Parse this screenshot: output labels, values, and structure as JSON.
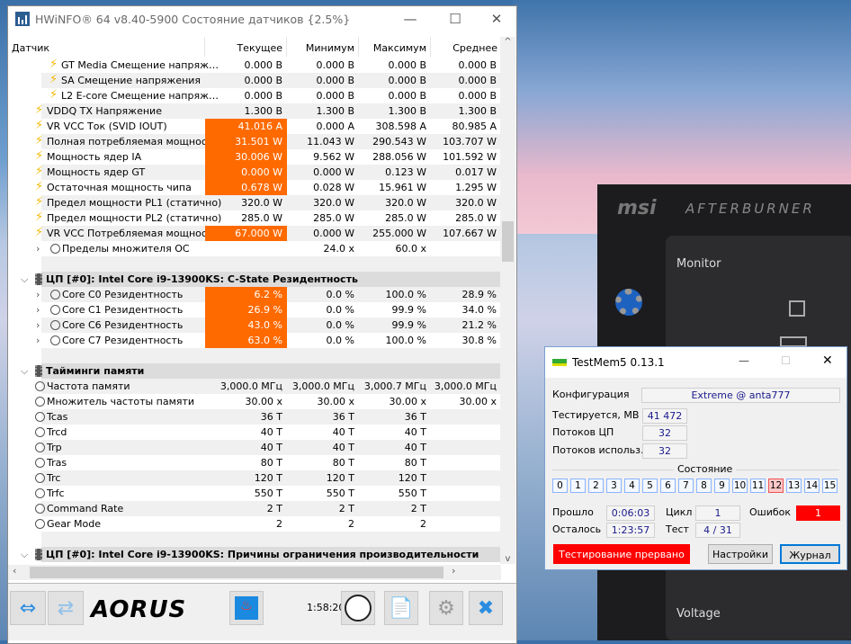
{
  "hwinfo": {
    "title": "HWiNFO® 64 v8.40-5900 Состояние датчиков {2.5%}",
    "columns": [
      "Датчик",
      "Текущее",
      "Минимум",
      "Максимум",
      "Среднее"
    ],
    "rows": [
      {
        "type": "sensor",
        "icon": "bolt-icon",
        "lvl": 3,
        "name": "GT Media Смещение напряж…",
        "v": [
          "0.000 В",
          "0.000 В",
          "0.000 В",
          "0.000 В"
        ]
      },
      {
        "type": "sensor",
        "icon": "bolt-icon",
        "lvl": 3,
        "name": "SA Смещение напряжения",
        "v": [
          "0.000 В",
          "0.000 В",
          "0.000 В",
          "0.000 В"
        ]
      },
      {
        "type": "sensor",
        "icon": "bolt-icon",
        "lvl": 3,
        "name": "L2 E-core Смещение напряж…",
        "v": [
          "0.000 В",
          "0.000 В",
          "0.000 В",
          "0.000 В"
        ]
      },
      {
        "type": "sensor",
        "icon": "bolt-icon",
        "lvl": 2,
        "name": "VDDQ TX Напряжение",
        "v": [
          "1.300 В",
          "1.300 В",
          "1.300 В",
          "1.300 В"
        ]
      },
      {
        "type": "sensor",
        "icon": "bolt-icon",
        "lvl": 2,
        "hi": true,
        "name": "VR VCC Ток (SVID IOUT)",
        "v": [
          "41.016 A",
          "0.000 A",
          "308.598 A",
          "80.985 A"
        ]
      },
      {
        "type": "sensor",
        "icon": "bolt-icon",
        "lvl": 2,
        "hi": true,
        "name": "Полная потребляемая мощност…",
        "v": [
          "31.501 W",
          "11.043 W",
          "290.543 W",
          "103.707 W"
        ]
      },
      {
        "type": "sensor",
        "icon": "bolt-icon",
        "lvl": 2,
        "hi": true,
        "name": "Мощность ядер IA",
        "v": [
          "30.006 W",
          "9.562 W",
          "288.056 W",
          "101.592 W"
        ]
      },
      {
        "type": "sensor",
        "icon": "bolt-icon",
        "lvl": 2,
        "hi": true,
        "name": "Мощность ядер GT",
        "v": [
          "0.000 W",
          "0.000 W",
          "0.123 W",
          "0.017 W"
        ]
      },
      {
        "type": "sensor",
        "icon": "bolt-icon",
        "lvl": 2,
        "hi": true,
        "name": "Остаточная мощность чипа",
        "v": [
          "0.678 W",
          "0.028 W",
          "15.961 W",
          "1.295 W"
        ]
      },
      {
        "type": "sensor",
        "icon": "bolt-icon",
        "lvl": 2,
        "name": "Предел мощности PL1 (статично)",
        "v": [
          "320.0 W",
          "320.0 W",
          "320.0 W",
          "320.0 W"
        ]
      },
      {
        "type": "sensor",
        "icon": "bolt-icon",
        "lvl": 2,
        "name": "Предел мощности PL2 (статично)",
        "v": [
          "285.0 W",
          "285.0 W",
          "285.0 W",
          "285.0 W"
        ]
      },
      {
        "type": "sensor",
        "icon": "bolt-icon",
        "lvl": 2,
        "hi": true,
        "name": "VR VCC Потребляемая мощност…",
        "v": [
          "67.000 W",
          "0.000 W",
          "255.000 W",
          "107.667 W"
        ]
      },
      {
        "type": "sensor",
        "icon": "clock-icon",
        "lvl": 1,
        "chev": true,
        "name": "Пределы множителя ОС",
        "v": [
          "",
          "24.0 x",
          "60.0 x",
          ""
        ]
      },
      {
        "type": "blank"
      },
      {
        "type": "section",
        "name": "ЦП [#0]: Intel Core i9-13900KS: C-State Резидентность"
      },
      {
        "type": "sensor",
        "icon": "clock-icon",
        "lvl": 1,
        "chev": true,
        "hi": true,
        "name": "Core C0 Резидентность",
        "v": [
          "6.2 %",
          "0.0 %",
          "100.0 %",
          "28.9 %"
        ]
      },
      {
        "type": "sensor",
        "icon": "clock-icon",
        "lvl": 1,
        "chev": true,
        "hi": true,
        "name": "Core C1 Резидентность",
        "v": [
          "26.9 %",
          "0.0 %",
          "99.9 %",
          "34.0 %"
        ]
      },
      {
        "type": "sensor",
        "icon": "clock-icon",
        "lvl": 1,
        "chev": true,
        "hi": true,
        "name": "Core C6 Резидентность",
        "v": [
          "43.0 %",
          "0.0 %",
          "99.9 %",
          "21.2 %"
        ]
      },
      {
        "type": "sensor",
        "icon": "clock-icon",
        "lvl": 1,
        "chev": true,
        "hi": true,
        "name": "Core C7 Резидентность",
        "v": [
          "63.0 %",
          "0.0 %",
          "100.0 %",
          "30.8 %"
        ]
      },
      {
        "type": "blank"
      },
      {
        "type": "section",
        "name": "Тайминги памяти"
      },
      {
        "type": "sensor",
        "icon": "clock-icon",
        "lvl": 0,
        "name": "Частота памяти",
        "v": [
          "3,000.0 МГц",
          "3,000.0 МГц",
          "3,000.7 МГц",
          "3,000.0 МГц"
        ]
      },
      {
        "type": "sensor",
        "icon": "clock-icon",
        "lvl": 0,
        "name": "Множитель частоты памяти",
        "v": [
          "30.00 x",
          "30.00 x",
          "30.00 x",
          "30.00 x"
        ]
      },
      {
        "type": "sensor",
        "icon": "clock-icon",
        "lvl": 0,
        "name": "Tcas",
        "v": [
          "36 T",
          "36 T",
          "36 T",
          ""
        ]
      },
      {
        "type": "sensor",
        "icon": "clock-icon",
        "lvl": 0,
        "name": "Trcd",
        "v": [
          "40 T",
          "40 T",
          "40 T",
          ""
        ]
      },
      {
        "type": "sensor",
        "icon": "clock-icon",
        "lvl": 0,
        "name": "Trp",
        "v": [
          "40 T",
          "40 T",
          "40 T",
          ""
        ]
      },
      {
        "type": "sensor",
        "icon": "clock-icon",
        "lvl": 0,
        "name": "Tras",
        "v": [
          "80 T",
          "80 T",
          "80 T",
          ""
        ]
      },
      {
        "type": "sensor",
        "icon": "clock-icon",
        "lvl": 0,
        "name": "Trc",
        "v": [
          "120 T",
          "120 T",
          "120 T",
          ""
        ]
      },
      {
        "type": "sensor",
        "icon": "clock-icon",
        "lvl": 0,
        "name": "Trfc",
        "v": [
          "550 T",
          "550 T",
          "550 T",
          ""
        ]
      },
      {
        "type": "sensor",
        "icon": "clock-icon",
        "lvl": 0,
        "name": "Command Rate",
        "v": [
          "2 T",
          "2 T",
          "2 T",
          ""
        ]
      },
      {
        "type": "sensor",
        "icon": "clock-icon",
        "lvl": 0,
        "name": "Gear Mode",
        "v": [
          "2",
          "2",
          "2",
          ""
        ]
      },
      {
        "type": "blank"
      },
      {
        "type": "section",
        "name": "ЦП [#0]: Intel Core i9-13900KS: Причины ограничения производительности"
      }
    ],
    "toolbar": {
      "logo": "AORUS",
      "timer": "1:58:20"
    },
    "highlight_color": "#ff6a00"
  },
  "afterburner": {
    "brand": "msi",
    "product": "AFTERBURNER",
    "monitor": "Monitor",
    "voltage": "Voltage"
  },
  "testmem": {
    "title": "TestMem5  0.13.1",
    "config_label": "Конфигурация",
    "config_value": "Extreme @ anta777",
    "tested_label": "Тестируется, МВ",
    "tested_value": "41 472",
    "threads_label": "Потоков ЦП",
    "threads_value": "32",
    "used_label": "Потоков использ.",
    "used_value": "32",
    "state_label": "Состояние",
    "states": [
      "0",
      "1",
      "2",
      "3",
      "4",
      "5",
      "6",
      "7",
      "8",
      "9",
      "10",
      "11",
      "12",
      "13",
      "14",
      "15"
    ],
    "error_state": "12",
    "elapsed_label": "Прошло",
    "elapsed": "0:06:03",
    "cycle_label": "Цикл",
    "cycle": "1",
    "errors_label": "Ошибок",
    "errors": "1",
    "remaining_label": "Осталось",
    "remaining": "1:23:57",
    "test_label": "Тест",
    "test": "4 / 31",
    "status_button": "Тестирование прервано",
    "settings_button": "Настройки",
    "log_button": "Журнал"
  }
}
